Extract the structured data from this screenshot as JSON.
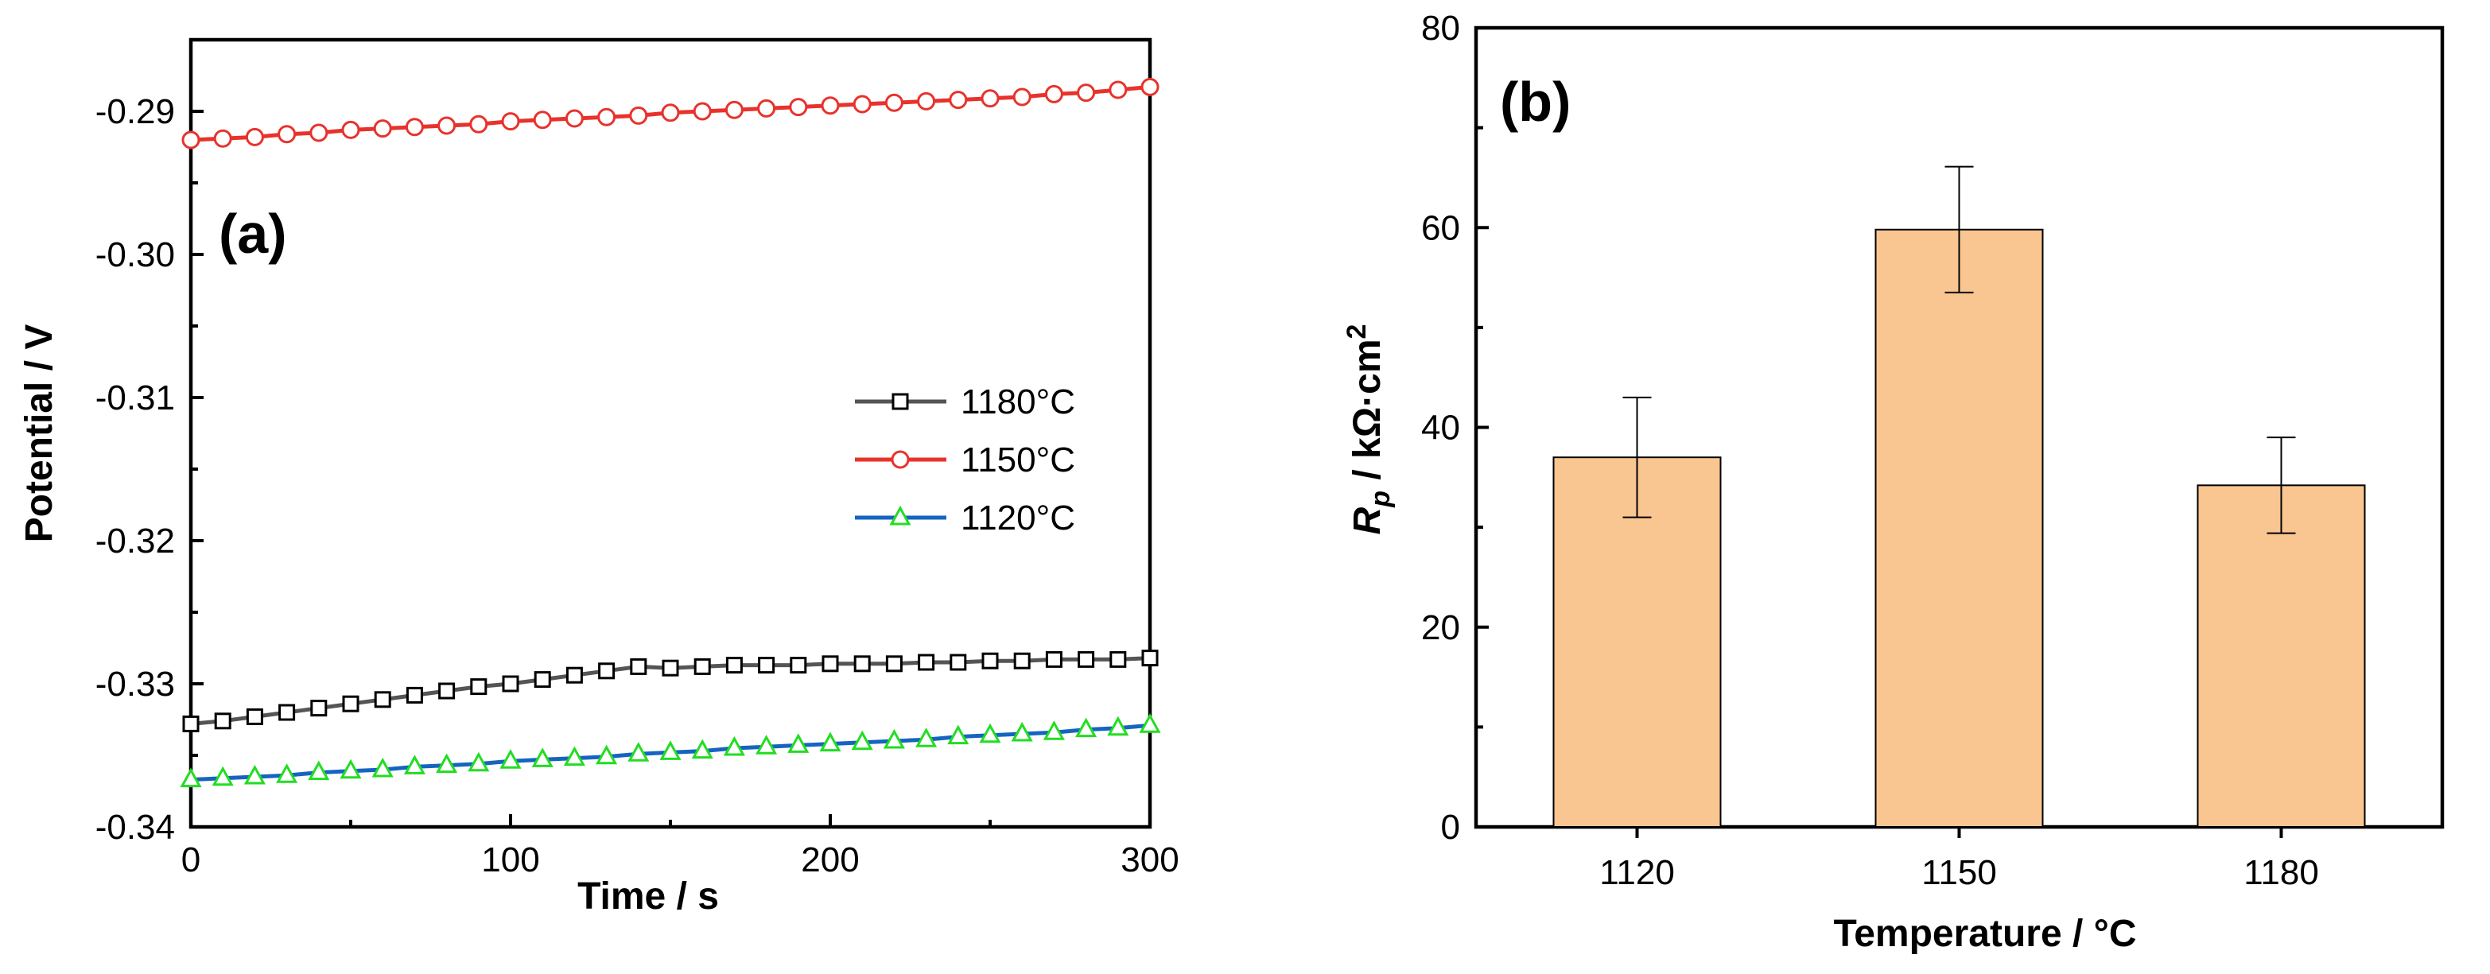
{
  "chart_data": [
    {
      "type": "line",
      "panel_label": "(a)",
      "xlabel": "Time / s",
      "ylabel": "Potential / V",
      "xlim": [
        0,
        300
      ],
      "ylim": [
        -0.34,
        -0.285
      ],
      "xticks": [
        0,
        100,
        200,
        300
      ],
      "xtick_labels": [
        "0",
        "100",
        "200",
        "300"
      ],
      "yticks": [
        -0.34,
        -0.33,
        -0.32,
        -0.31,
        -0.3,
        -0.29
      ],
      "ytick_labels": [
        "-0.34",
        "-0.33",
        "-0.32",
        "-0.31",
        "-0.30",
        "-0.29"
      ],
      "legend_position": "right-middle",
      "x": [
        0,
        10,
        20,
        30,
        40,
        50,
        60,
        70,
        80,
        90,
        100,
        110,
        120,
        130,
        140,
        150,
        160,
        170,
        180,
        190,
        200,
        210,
        220,
        230,
        240,
        250,
        260,
        270,
        280,
        290,
        300
      ],
      "series": [
        {
          "name": "1180°C",
          "color": "#555555",
          "marker_color": "#000000",
          "marker": "square",
          "values": [
            -0.3328,
            -0.3326,
            -0.3323,
            -0.332,
            -0.3317,
            -0.3314,
            -0.3311,
            -0.3308,
            -0.3305,
            -0.3302,
            -0.33,
            -0.3297,
            -0.3294,
            -0.3291,
            -0.3288,
            -0.3289,
            -0.3288,
            -0.3287,
            -0.3287,
            -0.3287,
            -0.3286,
            -0.3286,
            -0.3286,
            -0.3285,
            -0.3285,
            -0.3284,
            -0.3284,
            -0.3283,
            -0.3283,
            -0.3283,
            -0.3282
          ]
        },
        {
          "name": "1150°C",
          "color": "#e8322c",
          "marker_color": "#e8322c",
          "marker": "circle",
          "values": [
            -0.292,
            -0.2919,
            -0.2918,
            -0.2916,
            -0.2915,
            -0.2913,
            -0.2912,
            -0.2911,
            -0.291,
            -0.2909,
            -0.2907,
            -0.2906,
            -0.2905,
            -0.2904,
            -0.2903,
            -0.2901,
            -0.29,
            -0.2899,
            -0.2898,
            -0.2897,
            -0.2896,
            -0.2895,
            -0.2894,
            -0.2893,
            -0.2892,
            -0.2891,
            -0.289,
            -0.2888,
            -0.2887,
            -0.2885,
            -0.2883
          ]
        },
        {
          "name": "1120°C",
          "color": "#1565c0",
          "marker_color": "#22dd22",
          "marker": "triangle",
          "values": [
            -0.3367,
            -0.3366,
            -0.3365,
            -0.3364,
            -0.3362,
            -0.3361,
            -0.336,
            -0.3358,
            -0.3357,
            -0.3356,
            -0.3354,
            -0.3353,
            -0.3352,
            -0.3351,
            -0.3349,
            -0.3348,
            -0.3347,
            -0.3345,
            -0.3344,
            -0.3343,
            -0.3342,
            -0.3341,
            -0.334,
            -0.3339,
            -0.3337,
            -0.3336,
            -0.3335,
            -0.3334,
            -0.3332,
            -0.3331,
            -0.3329
          ]
        }
      ]
    },
    {
      "type": "bar",
      "panel_label": "(b)",
      "xlabel": "Temperature / °C",
      "ylabel_main": "R",
      "ylabel_sub": "p",
      "ylabel_rest": " / kΩ·cm",
      "ylabel_sup": "2",
      "categories": [
        "1120",
        "1150",
        "1180"
      ],
      "values": [
        37.0,
        59.8,
        34.2
      ],
      "errors": [
        6.0,
        6.3,
        4.8
      ],
      "ylim": [
        0,
        80
      ],
      "yticks": [
        0,
        20,
        40,
        60,
        80
      ],
      "ytick_labels": [
        "0",
        "20",
        "40",
        "60",
        "80"
      ],
      "bar_color": "#f9c590",
      "edge_color": "#000000"
    }
  ]
}
